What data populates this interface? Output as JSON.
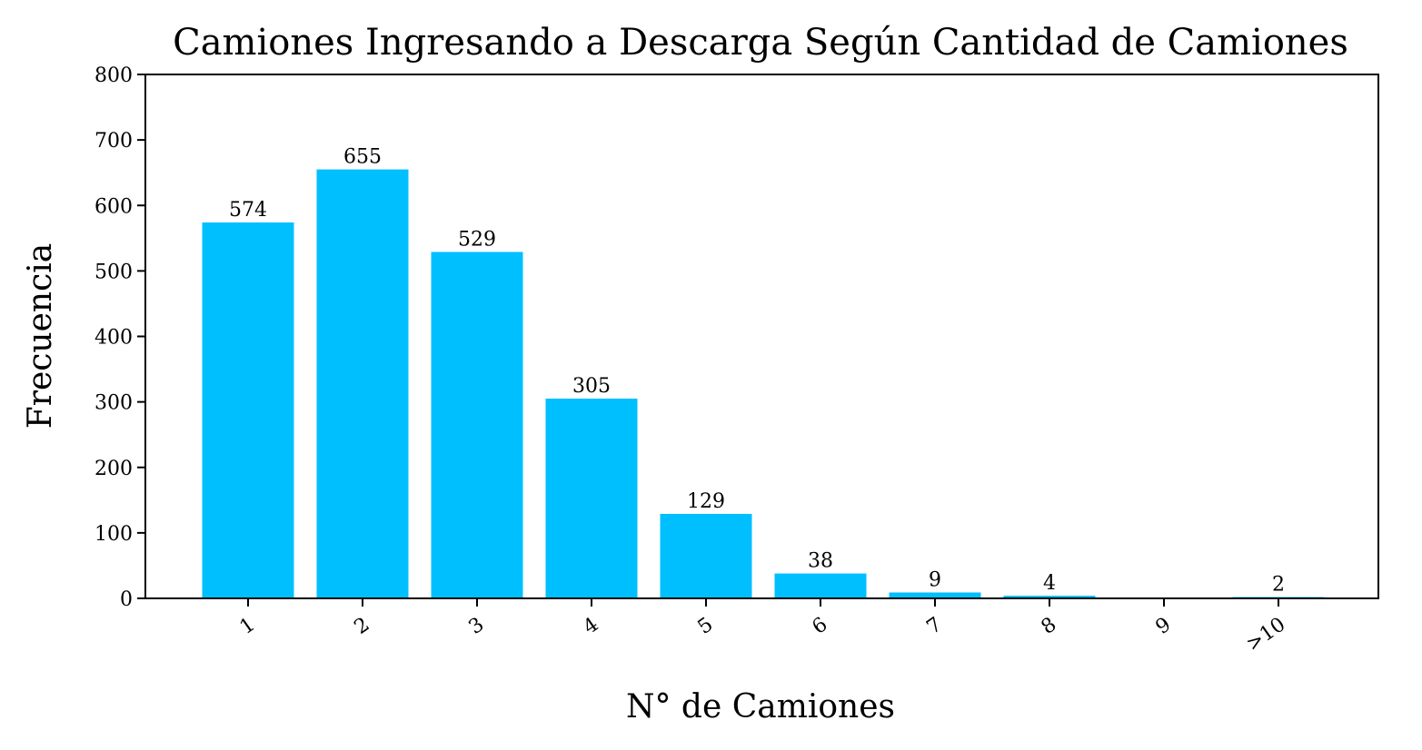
{
  "chart_data": {
    "type": "bar",
    "title": "Camiones Ingresando a Descarga Según Cantidad de Camiones",
    "xlabel": "N° de Camiones",
    "ylabel": "Frecuencia",
    "categories": [
      "1",
      "2",
      "3",
      "4",
      "5",
      "6",
      "7",
      "8",
      "9",
      ">10"
    ],
    "values": [
      574,
      655,
      529,
      305,
      129,
      38,
      9,
      4,
      0,
      2
    ],
    "data_labels": [
      "574",
      "655",
      "529",
      "305",
      "129",
      "38",
      "9",
      "4",
      "",
      "2"
    ],
    "ylim": [
      0,
      800
    ],
    "yticks": [
      0,
      100,
      200,
      300,
      400,
      500,
      600,
      700,
      800
    ],
    "bar_color": "#00BFFF",
    "grid": false
  }
}
